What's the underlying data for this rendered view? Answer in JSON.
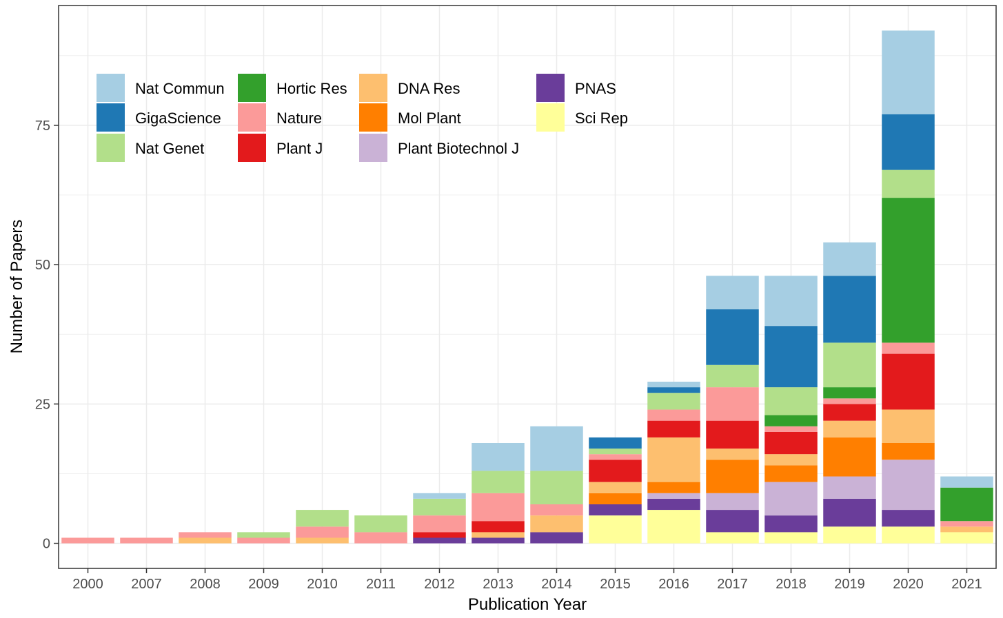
{
  "chart_data": {
    "type": "bar",
    "stacked": true,
    "xlabel": "Publication Year",
    "ylabel": "Number of Papers",
    "ylim": [
      -4.5,
      96.5
    ],
    "yticks": [
      0,
      25,
      50,
      75
    ],
    "grid": true,
    "legend_position": "top-left",
    "categories": [
      "2000",
      "2007",
      "2008",
      "2009",
      "2010",
      "2011",
      "2012",
      "2013",
      "2014",
      "2015",
      "2016",
      "2017",
      "2018",
      "2019",
      "2020",
      "2021"
    ],
    "series": [
      {
        "name": "Nat Commun",
        "color": "#A6CEE3",
        "values": [
          0,
          0,
          0,
          0,
          0,
          0,
          1,
          5,
          8,
          0,
          1,
          6,
          9,
          6,
          15,
          2
        ]
      },
      {
        "name": "GigaScience",
        "color": "#1F78B4",
        "values": [
          0,
          0,
          0,
          0,
          0,
          0,
          0,
          0,
          0,
          2,
          1,
          10,
          11,
          12,
          10,
          0
        ]
      },
      {
        "name": "Nat Genet",
        "color": "#B2DF8A",
        "values": [
          0,
          0,
          0,
          1,
          3,
          3,
          3,
          4,
          6,
          1,
          3,
          4,
          5,
          8,
          5,
          0
        ]
      },
      {
        "name": "Hortic Res",
        "color": "#33A02C",
        "values": [
          0,
          0,
          0,
          0,
          0,
          0,
          0,
          0,
          0,
          0,
          0,
          0,
          2,
          2,
          26,
          6
        ]
      },
      {
        "name": "Nature",
        "color": "#FB9A99",
        "values": [
          1,
          1,
          1,
          1,
          2,
          2,
          3,
          5,
          2,
          1,
          2,
          6,
          1,
          1,
          2,
          1
        ]
      },
      {
        "name": "Plant J",
        "color": "#E31A1C",
        "values": [
          0,
          0,
          0,
          0,
          0,
          0,
          1,
          2,
          0,
          4,
          3,
          5,
          4,
          3,
          10,
          0
        ]
      },
      {
        "name": "DNA Res",
        "color": "#FDBF6F",
        "values": [
          0,
          0,
          1,
          0,
          1,
          0,
          0,
          1,
          3,
          2,
          8,
          2,
          2,
          3,
          6,
          1
        ]
      },
      {
        "name": "Mol Plant",
        "color": "#FF7F00",
        "values": [
          0,
          0,
          0,
          0,
          0,
          0,
          0,
          0,
          0,
          2,
          2,
          6,
          3,
          7,
          3,
          0
        ]
      },
      {
        "name": "Plant Biotechnol J",
        "color": "#CAB2D6",
        "values": [
          0,
          0,
          0,
          0,
          0,
          0,
          0,
          0,
          0,
          0,
          1,
          3,
          6,
          4,
          9,
          0
        ]
      },
      {
        "name": "PNAS",
        "color": "#6A3D9A",
        "values": [
          0,
          0,
          0,
          0,
          0,
          0,
          1,
          1,
          2,
          2,
          2,
          4,
          3,
          5,
          3,
          0
        ]
      },
      {
        "name": "Sci Rep",
        "color": "#FFFF99",
        "values": [
          0,
          0,
          0,
          0,
          0,
          0,
          0,
          0,
          0,
          5,
          6,
          2,
          2,
          3,
          3,
          2
        ]
      }
    ]
  }
}
